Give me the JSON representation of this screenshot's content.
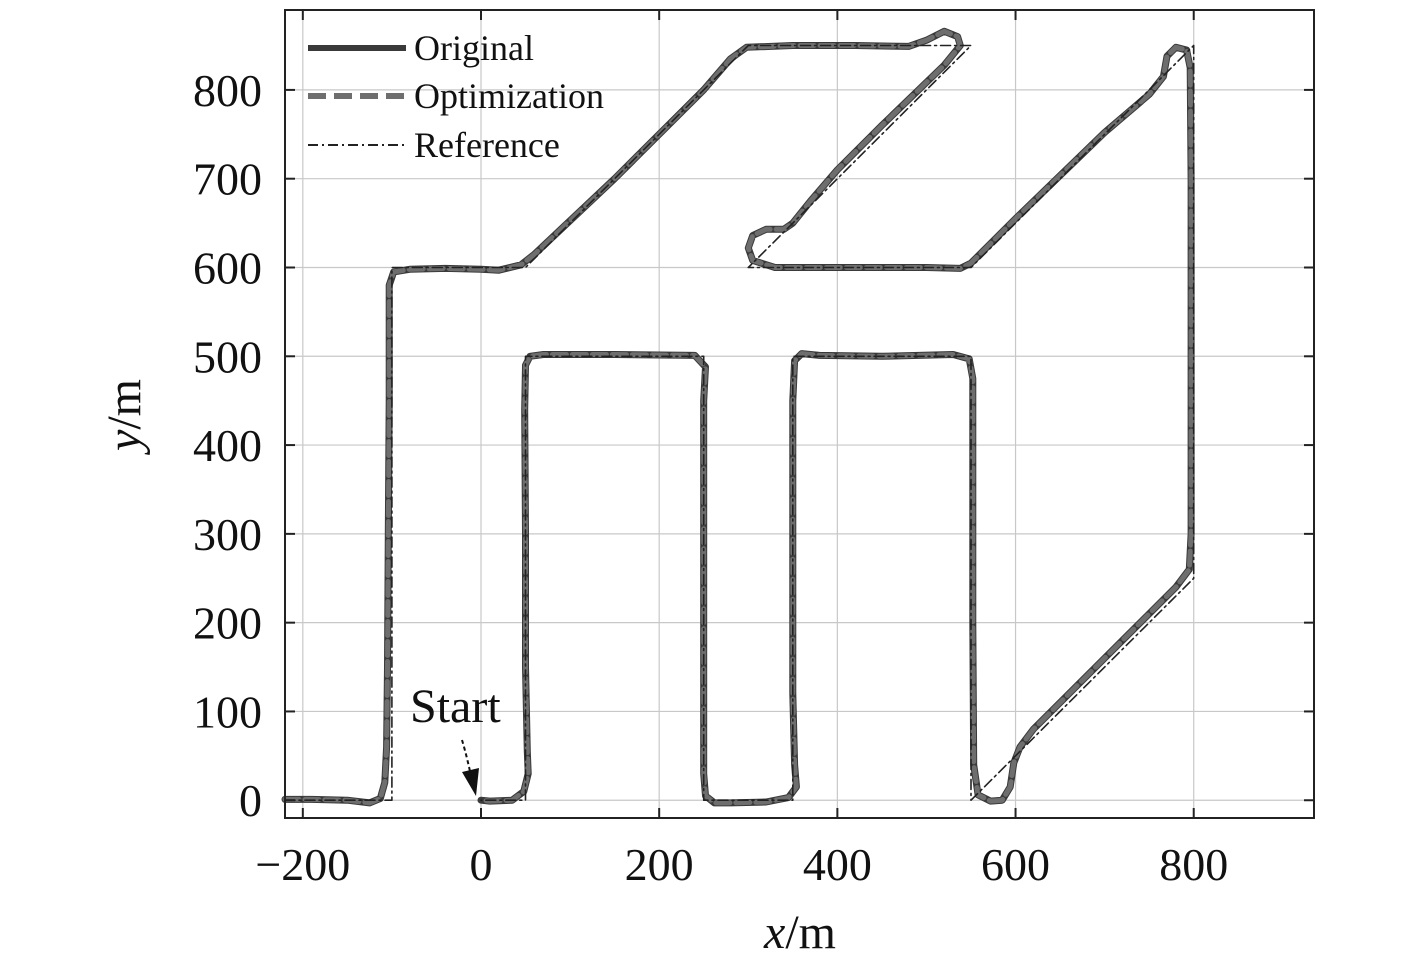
{
  "chart_data": {
    "type": "line",
    "xlabel_var": "x",
    "xlabel_unit": "/m",
    "ylabel_var": "y",
    "ylabel_unit": "/m",
    "xlim": [
      -220,
      935
    ],
    "ylim": [
      -20,
      890
    ],
    "xticks": [
      -200,
      0,
      200,
      400,
      600,
      800
    ],
    "xtick_labels": [
      "−200",
      "0",
      "200",
      "400",
      "600",
      "800"
    ],
    "yticks": [
      0,
      100,
      200,
      300,
      400,
      500,
      600,
      700,
      800
    ],
    "ytick_labels": [
      "0",
      "100",
      "200",
      "300",
      "400",
      "500",
      "600",
      "700",
      "800"
    ],
    "grid": true,
    "legend_position": "top-left",
    "annotation": {
      "text": "Start",
      "x": 0,
      "y": 0
    },
    "series": [
      {
        "name": "Original",
        "style": "solid",
        "color": "#3a3a3a",
        "points": [
          [
            -220,
            1
          ],
          [
            -190,
            1
          ],
          [
            -150,
            0
          ],
          [
            -125,
            -3
          ],
          [
            -113,
            2
          ],
          [
            -108,
            20
          ],
          [
            -106,
            60
          ],
          [
            -105,
            150
          ],
          [
            -104,
            300
          ],
          [
            -103,
            450
          ],
          [
            -103,
            580
          ],
          [
            -98,
            595
          ],
          [
            -80,
            598
          ],
          [
            -40,
            599
          ],
          [
            0,
            598
          ],
          [
            20,
            597
          ],
          [
            45,
            603
          ],
          [
            60,
            615
          ],
          [
            150,
            700
          ],
          [
            250,
            800
          ],
          [
            280,
            835
          ],
          [
            298,
            848
          ],
          [
            350,
            850
          ],
          [
            420,
            850
          ],
          [
            480,
            849
          ],
          [
            500,
            856
          ],
          [
            520,
            866
          ],
          [
            535,
            860
          ],
          [
            538,
            850
          ],
          [
            520,
            828
          ],
          [
            450,
            760
          ],
          [
            400,
            710
          ],
          [
            370,
            675
          ],
          [
            350,
            650
          ],
          [
            340,
            643
          ],
          [
            320,
            643
          ],
          [
            305,
            636
          ],
          [
            300,
            622
          ],
          [
            305,
            608
          ],
          [
            330,
            600
          ],
          [
            400,
            600
          ],
          [
            500,
            600
          ],
          [
            538,
            599
          ],
          [
            550,
            605
          ],
          [
            600,
            655
          ],
          [
            700,
            752
          ],
          [
            750,
            795
          ],
          [
            766,
            815
          ],
          [
            770,
            838
          ],
          [
            780,
            848
          ],
          [
            792,
            845
          ],
          [
            796,
            825
          ],
          [
            797,
            700
          ],
          [
            797,
            500
          ],
          [
            797,
            300
          ],
          [
            795,
            260
          ],
          [
            780,
            240
          ],
          [
            700,
            160
          ],
          [
            620,
            80
          ],
          [
            605,
            60
          ],
          [
            598,
            42
          ],
          [
            594,
            15
          ],
          [
            585,
            0
          ],
          [
            572,
            -1
          ],
          [
            558,
            6
          ],
          [
            553,
            40
          ],
          [
            552,
            200
          ],
          [
            552,
            400
          ],
          [
            552,
            475
          ],
          [
            548,
            497
          ],
          [
            530,
            502
          ],
          [
            450,
            500
          ],
          [
            380,
            501
          ],
          [
            360,
            503
          ],
          [
            352,
            495
          ],
          [
            350,
            450
          ],
          [
            350,
            300
          ],
          [
            350,
            120
          ],
          [
            352,
            40
          ],
          [
            354,
            15
          ],
          [
            345,
            3
          ],
          [
            320,
            -2
          ],
          [
            280,
            -3
          ],
          [
            262,
            -3
          ],
          [
            252,
            5
          ],
          [
            250,
            30
          ],
          [
            250,
            150
          ],
          [
            250,
            300
          ],
          [
            250,
            450
          ],
          [
            252,
            488
          ],
          [
            240,
            501
          ],
          [
            150,
            502
          ],
          [
            70,
            502
          ],
          [
            55,
            500
          ],
          [
            50,
            490
          ],
          [
            49,
            440
          ],
          [
            50,
            300
          ],
          [
            50,
            150
          ],
          [
            52,
            55
          ],
          [
            53,
            30
          ],
          [
            48,
            10
          ],
          [
            35,
            0
          ],
          [
            10,
            -1
          ],
          [
            0,
            0
          ]
        ]
      },
      {
        "name": "Optimization",
        "style": "dashed",
        "color": "#6e6e6e",
        "points": [
          [
            -220,
            1
          ],
          [
            -190,
            1
          ],
          [
            -150,
            0
          ],
          [
            -125,
            -3
          ],
          [
            -113,
            2
          ],
          [
            -108,
            20
          ],
          [
            -106,
            60
          ],
          [
            -105,
            150
          ],
          [
            -104,
            300
          ],
          [
            -103,
            450
          ],
          [
            -103,
            580
          ],
          [
            -98,
            595
          ],
          [
            -80,
            598
          ],
          [
            -40,
            599
          ],
          [
            0,
            598
          ],
          [
            20,
            597
          ],
          [
            45,
            603
          ],
          [
            60,
            615
          ],
          [
            150,
            700
          ],
          [
            250,
            800
          ],
          [
            280,
            835
          ],
          [
            298,
            848
          ],
          [
            350,
            850
          ],
          [
            420,
            850
          ],
          [
            480,
            849
          ],
          [
            500,
            856
          ],
          [
            520,
            866
          ],
          [
            535,
            860
          ],
          [
            538,
            850
          ],
          [
            520,
            828
          ],
          [
            450,
            760
          ],
          [
            400,
            710
          ],
          [
            370,
            675
          ],
          [
            350,
            650
          ],
          [
            340,
            643
          ],
          [
            320,
            643
          ],
          [
            305,
            636
          ],
          [
            300,
            622
          ],
          [
            305,
            608
          ],
          [
            330,
            600
          ],
          [
            400,
            600
          ],
          [
            500,
            600
          ],
          [
            538,
            599
          ],
          [
            550,
            605
          ],
          [
            600,
            655
          ],
          [
            700,
            752
          ],
          [
            750,
            795
          ],
          [
            766,
            815
          ],
          [
            770,
            838
          ],
          [
            780,
            848
          ],
          [
            792,
            845
          ],
          [
            796,
            825
          ],
          [
            797,
            700
          ],
          [
            797,
            500
          ],
          [
            797,
            300
          ],
          [
            795,
            260
          ],
          [
            780,
            240
          ],
          [
            700,
            160
          ],
          [
            620,
            80
          ],
          [
            605,
            60
          ],
          [
            598,
            42
          ],
          [
            594,
            15
          ],
          [
            585,
            0
          ],
          [
            572,
            -1
          ],
          [
            558,
            6
          ],
          [
            553,
            40
          ],
          [
            552,
            200
          ],
          [
            552,
            400
          ],
          [
            552,
            475
          ],
          [
            548,
            497
          ],
          [
            530,
            502
          ],
          [
            450,
            500
          ],
          [
            380,
            501
          ],
          [
            360,
            503
          ],
          [
            352,
            495
          ],
          [
            350,
            450
          ],
          [
            350,
            300
          ],
          [
            350,
            120
          ],
          [
            352,
            40
          ],
          [
            354,
            15
          ],
          [
            345,
            3
          ],
          [
            320,
            -2
          ],
          [
            280,
            -3
          ],
          [
            262,
            -3
          ],
          [
            252,
            5
          ],
          [
            250,
            30
          ],
          [
            250,
            150
          ],
          [
            250,
            300
          ],
          [
            250,
            450
          ],
          [
            252,
            488
          ],
          [
            240,
            501
          ],
          [
            150,
            502
          ],
          [
            70,
            502
          ],
          [
            55,
            500
          ],
          [
            50,
            490
          ],
          [
            49,
            440
          ],
          [
            50,
            300
          ],
          [
            50,
            150
          ],
          [
            52,
            55
          ],
          [
            53,
            30
          ],
          [
            48,
            10
          ],
          [
            35,
            0
          ],
          [
            10,
            -1
          ],
          [
            0,
            0
          ]
        ]
      },
      {
        "name": "Reference",
        "style": "dashdot",
        "color": "#222222",
        "points": [
          [
            -220,
            0
          ],
          [
            -100,
            0
          ],
          [
            -100,
            600
          ],
          [
            50,
            600
          ],
          [
            300,
            850
          ],
          [
            550,
            850
          ],
          [
            300,
            600
          ],
          [
            550,
            600
          ],
          [
            800,
            850
          ],
          [
            800,
            250
          ],
          [
            550,
            0
          ],
          [
            550,
            500
          ],
          [
            350,
            500
          ],
          [
            350,
            0
          ],
          [
            250,
            0
          ],
          [
            250,
            500
          ],
          [
            50,
            500
          ],
          [
            50,
            0
          ],
          [
            0,
            0
          ]
        ]
      }
    ]
  }
}
